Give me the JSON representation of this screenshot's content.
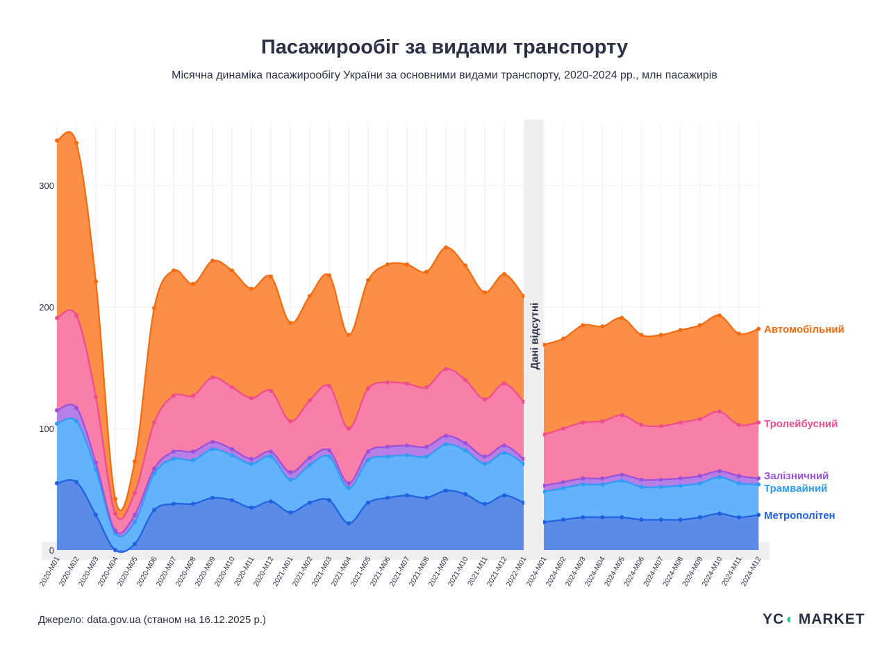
{
  "title": "Пасажирообіг за видами транспорту",
  "subtitle": "Місячна динаміка пасажирообігу України за основними видами транспорту, 2020-2024 рр., млн пасажирів",
  "source": "Джерело: data.gov.ua (станом на 16.12.2025 р.)",
  "logo": "YC MARKET",
  "chart_data": {
    "type": "area",
    "stacked": true,
    "title": "Пасажирообіг за видами транспорту",
    "ylim": [
      0,
      345
    ],
    "yticks": [
      0,
      100,
      200,
      300
    ],
    "grid": true,
    "legend": "right (inline labels)",
    "gap_after": "2022-M01",
    "gap_label": "Дані відсутні",
    "categories": [
      "2020-M01",
      "2020-M02",
      "2020-M03",
      "2020-M04",
      "2020-M05",
      "2020-M06",
      "2020-M07",
      "2020-M08",
      "2020-M09",
      "2020-M10",
      "2020-M11",
      "2020-M12",
      "2021-M01",
      "2021-M02",
      "2021-M03",
      "2021-M04",
      "2021-M05",
      "2021-M06",
      "2021-M07",
      "2021-M08",
      "2021-M09",
      "2021-M10",
      "2021-M11",
      "2021-M12",
      "2022-M01",
      "2024-M01",
      "2024-M02",
      "2024-M03",
      "2024-M04",
      "2024-M05",
      "2024-M06",
      "2024-M07",
      "2024-M08",
      "2024-M09",
      "2024-M10",
      "2024-M11",
      "2024-M12"
    ],
    "series": [
      {
        "name": "Метрополітен",
        "line": "#1f5fe0",
        "fill": "#5a8be6",
        "values": [
          55,
          56,
          29,
          0,
          5,
          33,
          38,
          38,
          43,
          41,
          35,
          40,
          31,
          39,
          41,
          22,
          39,
          43,
          45,
          43,
          49,
          46,
          38,
          45,
          39,
          23,
          25,
          27,
          27,
          27,
          25,
          25,
          25,
          27,
          30,
          27,
          29
        ]
      },
      {
        "name": "Трамвайний",
        "line": "#2e9bf5",
        "fill": "#62b3fc",
        "values": [
          49,
          50,
          37,
          14,
          18,
          30,
          37,
          36,
          40,
          37,
          36,
          37,
          27,
          31,
          36,
          29,
          35,
          34,
          33,
          34,
          38,
          36,
          33,
          35,
          32,
          25,
          26,
          27,
          27,
          30,
          27,
          27,
          28,
          28,
          30,
          28,
          25
        ]
      },
      {
        "name": "Залізничний",
        "line": "#9b50db",
        "fill": "#b57fe6",
        "values": [
          11,
          11,
          6,
          2,
          6,
          4,
          6,
          7,
          6,
          5,
          4,
          4,
          6,
          6,
          5,
          4,
          7,
          8,
          8,
          8,
          7,
          6,
          6,
          6,
          4,
          5,
          5,
          5,
          5,
          5,
          6,
          6,
          6,
          6,
          5,
          6,
          5
        ]
      },
      {
        "name": "Тролейбусний",
        "line": "#ee4c8c",
        "fill": "#f77faa",
        "values": [
          76,
          76,
          54,
          14,
          18,
          38,
          46,
          46,
          53,
          51,
          50,
          50,
          42,
          47,
          53,
          45,
          52,
          53,
          51,
          49,
          55,
          52,
          47,
          51,
          47,
          42,
          44,
          46,
          47,
          49,
          45,
          44,
          46,
          47,
          49,
          42,
          46
        ]
      },
      {
        "name": "Автомобільний",
        "line": "#f46a0e",
        "fill": "#fb8f47",
        "values": [
          146,
          142,
          95,
          12,
          26,
          94,
          103,
          92,
          96,
          96,
          90,
          94,
          81,
          86,
          91,
          77,
          89,
          97,
          98,
          95,
          100,
          94,
          88,
          90,
          87,
          74,
          74,
          80,
          78,
          80,
          74,
          75,
          76,
          77,
          79,
          75,
          77
        ]
      }
    ]
  }
}
